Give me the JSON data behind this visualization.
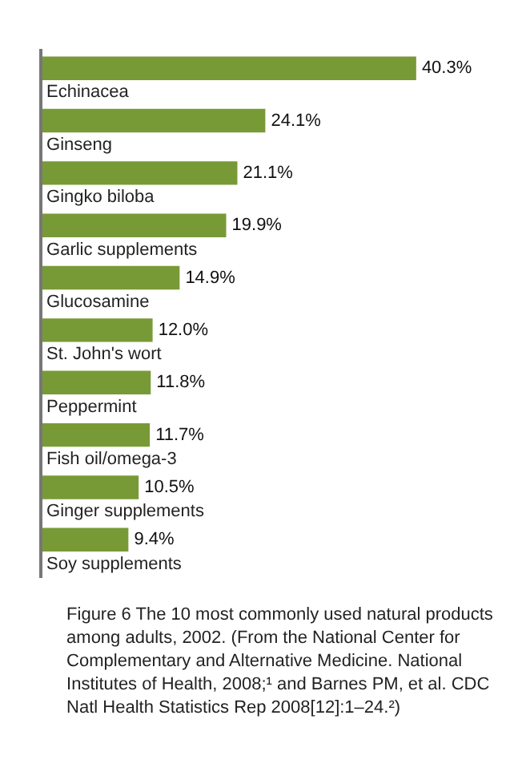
{
  "chart_data": {
    "type": "bar",
    "orientation": "horizontal",
    "data_labels": true,
    "color": "#789a36",
    "categories": [
      "Echinacea",
      "Ginseng",
      "Gingko biloba",
      "Garlic supplements",
      "Glucosamine",
      "St. John's wort",
      "Peppermint",
      "Fish oil/omega-3",
      "Ginger supplements",
      "Soy supplements"
    ],
    "values": [
      40.3,
      24.1,
      21.1,
      19.9,
      14.9,
      12.0,
      11.8,
      11.7,
      10.5,
      9.4
    ],
    "value_labels": [
      "40.3%",
      "24.1%",
      "21.1%",
      "19.9%",
      "14.9%",
      "12.0%",
      "11.8%",
      "11.7%",
      "10.5%",
      "9.4%"
    ],
    "annotations": [
      "Figure 6 The 10 most commonly used natural products among adults, 2002. (From the National Center for Complementary and Alternative Medicine. National Institutes of Health, 2008;¹ and Barnes PM, et al. CDC Natl Health Statistics Rep 2008[12]:1–24.²)"
    ]
  }
}
